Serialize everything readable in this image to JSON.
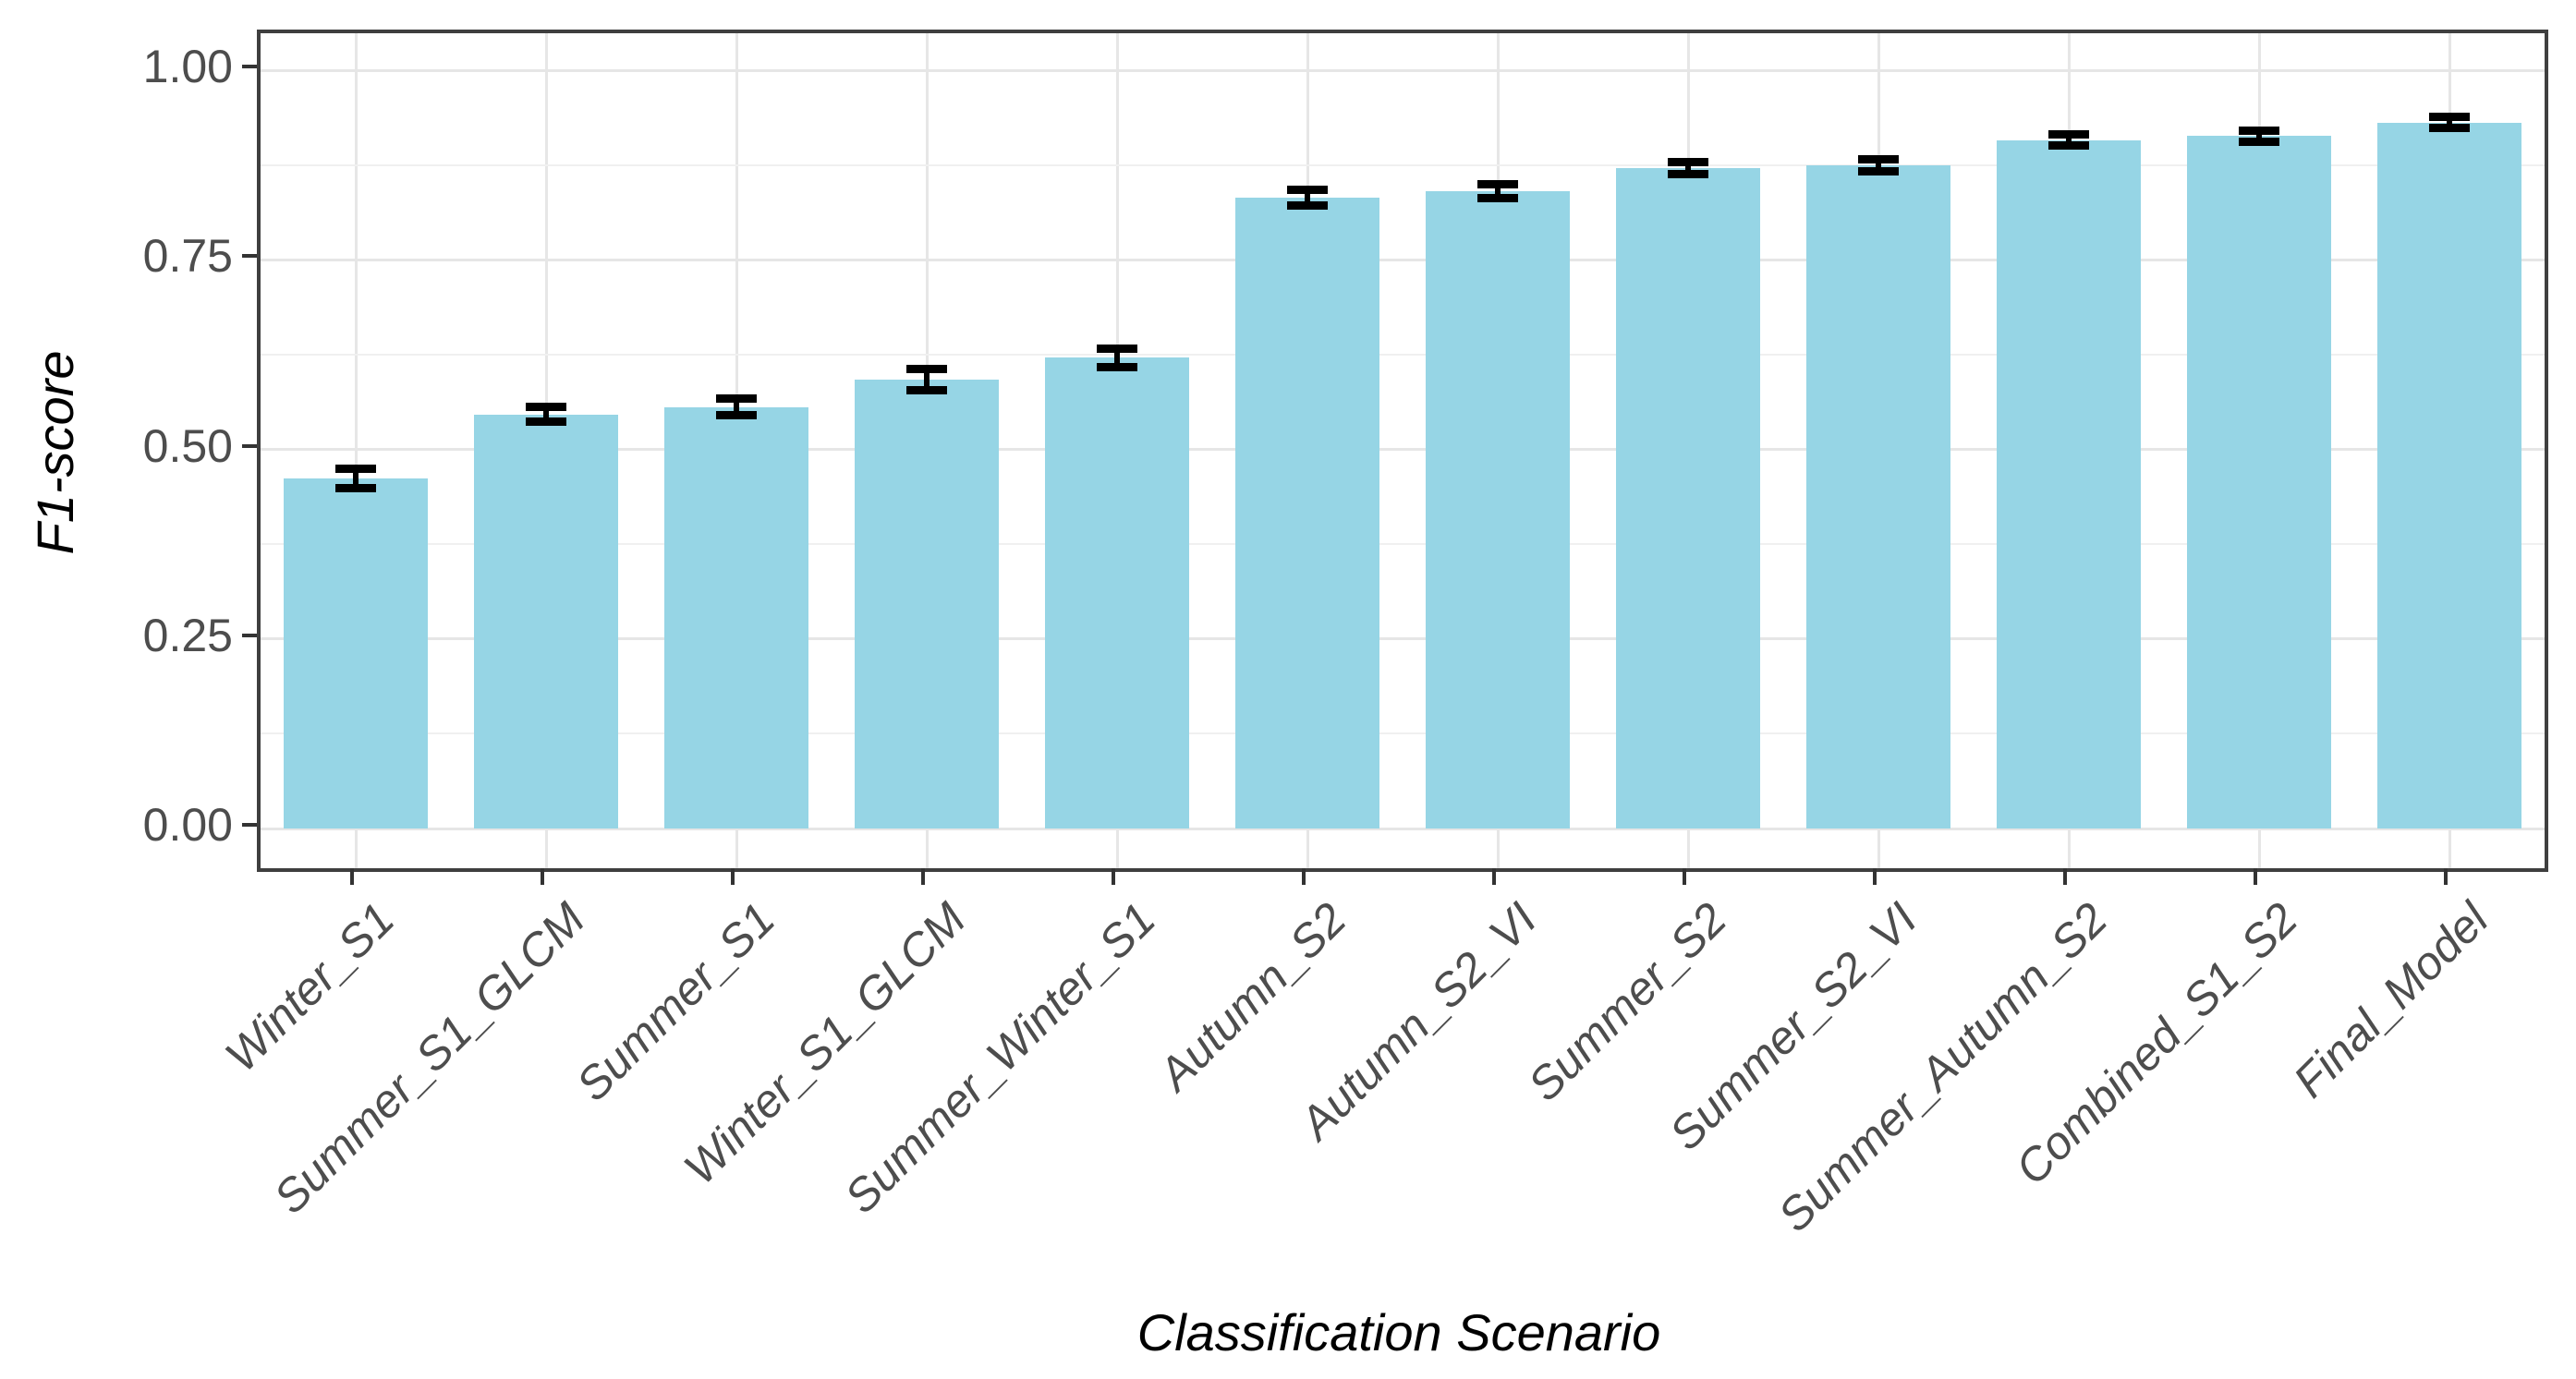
{
  "chart_data": {
    "type": "bar",
    "title": "",
    "xlabel": "Classification Scenario",
    "ylabel": "F1-score",
    "categories": [
      "Winter_S1",
      "Summer_S1_GLCM",
      "Summer_S1",
      "Winter_S1_GLCM",
      "Summer_Winter_S1",
      "Autumn_S2",
      "Autumn_S2_VI",
      "Summer_S2",
      "Summer_S2_VI",
      "Summer_Autumn_S2",
      "Combined_S1_S2",
      "Final_Model"
    ],
    "series": [
      {
        "name": "F1-score",
        "values": [
          0.462,
          0.546,
          0.556,
          0.592,
          0.621,
          0.832,
          0.84,
          0.871,
          0.875,
          0.908,
          0.913,
          0.931
        ],
        "errors": [
          0.013,
          0.01,
          0.011,
          0.014,
          0.012,
          0.01,
          0.009,
          0.008,
          0.008,
          0.007,
          0.007,
          0.007
        ]
      }
    ],
    "ylim": [
      0,
      1
    ],
    "yticks": [
      0,
      0.25,
      0.5,
      0.75,
      1.0
    ],
    "ytick_labels": [
      "0.00",
      "0.25",
      "0.50",
      "0.75",
      "1.00"
    ],
    "minor_yticks": [
      0.125,
      0.375,
      0.625,
      0.875
    ],
    "grid": true,
    "legend": "none",
    "error_bars": true,
    "colors": {
      "bar_fill": "#96d5e5",
      "error_bar": "#000000",
      "grid_major": "#e6e6e6",
      "grid_minor": "#f0f0f0",
      "panel_border": "#3f3f3f",
      "tick_mark": "#333333",
      "tick_label": "#4d4d4d",
      "axis_title": "#000000",
      "background": "#ffffff"
    }
  }
}
